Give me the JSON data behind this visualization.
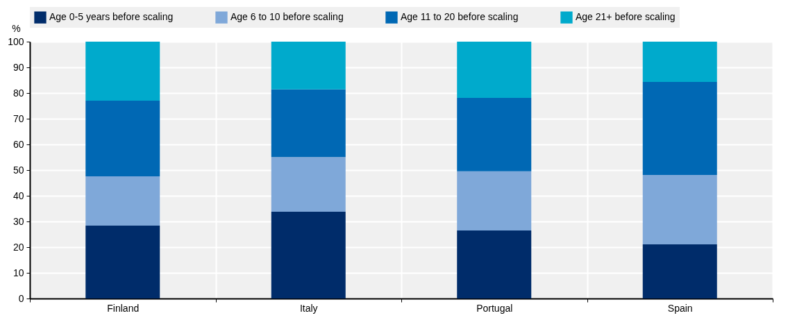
{
  "chart_data": {
    "type": "bar",
    "stacked": true,
    "categories": [
      "Finland",
      "Italy",
      "Portugal",
      "Spain"
    ],
    "series": [
      {
        "name": "Age 0-5 years before scaling",
        "color": "#002c6a",
        "values": [
          28.4,
          33.8,
          26.5,
          21.1
        ]
      },
      {
        "name": "Age 6 to 10 before scaling",
        "color": "#7fa8d9",
        "values": [
          19.2,
          21.3,
          23.0,
          27.0
        ]
      },
      {
        "name": "Age 11 to 20 before scaling",
        "color": "#0068b4",
        "values": [
          29.4,
          26.3,
          28.6,
          36.2
        ]
      },
      {
        "name": "Age 21+ before scaling",
        "color": "#00aacc",
        "values": [
          23.0,
          18.6,
          21.9,
          15.7
        ]
      }
    ],
    "ylabel": "%",
    "ylim": [
      0,
      100
    ],
    "yticks": [
      0,
      10,
      20,
      30,
      40,
      50,
      60,
      70,
      80,
      90,
      100
    ],
    "grid": true,
    "legend": "top"
  }
}
